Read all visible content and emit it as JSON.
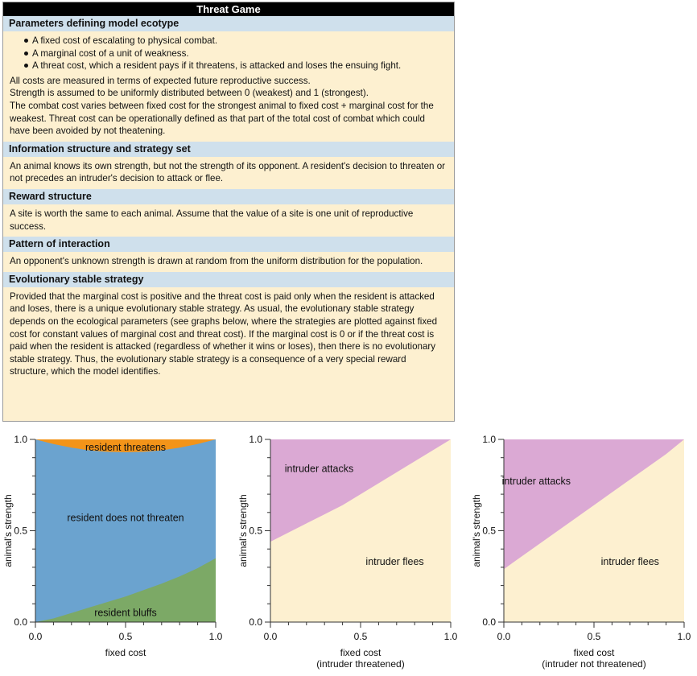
{
  "title": "Threat Game",
  "sections": {
    "ecotype": {
      "heading": "Parameters defining model ecotype",
      "bullets": [
        "A fixed cost of escalating to physical combat.",
        "A marginal cost of a unit of weakness.",
        "A threat cost, which a resident pays if it threatens, is attacked and loses the ensuing fight."
      ],
      "lines": [
        "All costs are measured in terms of expected future reproductive success.",
        "Strength is assumed to be uniformly distributed between 0 (weakest) and 1 (strongest).",
        "The combat cost varies between fixed cost for the strongest animal to fixed cost + marginal cost for the weakest. Threat cost can be operationally defined as that part of the total cost of combat which could have been avoided by not theatening."
      ]
    },
    "information": {
      "heading": "Information structure and strategy set",
      "text": "An animal knows its own strength, but not the strength of its opponent. A resident's decision to threaten or not precedes an intruder's decision to attack or flee."
    },
    "reward": {
      "heading": "Reward structure",
      "text": "A site is worth the same to each animal. Assume that the value of a site is one unit of reproductive success."
    },
    "interaction": {
      "heading": "Pattern of interaction",
      "text": "An opponent's unknown strength is drawn at random from the uniform distribution for the population."
    },
    "ess": {
      "heading": "Evolutionary stable strategy",
      "text": "Provided that the marginal cost is positive and the threat cost is paid only when the resident is attacked and loses, there is a unique evolutionary stable strategy. As usual, the evolutionary stable strategy depends on the ecological parameters (see graphs below, where the strategies are plotted against fixed cost for constant values of marginal cost and threat cost). If the marginal cost is 0 or if the threat cost is paid when the resident is attacked (regardless of whether it wins or loses), then there is no evolutionary stable strategy. Thus, the evolutionary stable strategy is a consequence of a very special reward structure, which the model identifies."
    }
  },
  "chart_data": [
    {
      "type": "area",
      "xlabel": "fixed cost",
      "xlabel2": "",
      "ylabel": "animal's strength",
      "xlim": [
        0,
        1
      ],
      "ylim": [
        0,
        1
      ],
      "xticks": [
        "0.0",
        "0.5",
        "1.0"
      ],
      "yticks": [
        "0.0",
        "0.5",
        "1.0"
      ],
      "x": [
        0,
        0.1,
        0.2,
        0.3,
        0.4,
        0.5,
        0.6,
        0.7,
        0.8,
        0.9,
        1.0
      ],
      "boundaries": {
        "bluff_upper": [
          0,
          0.02,
          0.05,
          0.08,
          0.11,
          0.14,
          0.175,
          0.21,
          0.25,
          0.295,
          0.35
        ],
        "threaten_lower": [
          1.0,
          0.975,
          0.955,
          0.94,
          0.932,
          0.93,
          0.932,
          0.94,
          0.955,
          0.975,
          1.0
        ]
      },
      "regions": [
        {
          "name": "resident threatens",
          "color": "#f39419",
          "label_x": 0.5,
          "label_y": 0.955
        },
        {
          "name": "resident does not threaten",
          "color": "#6ba3cf",
          "label_x": 0.5,
          "label_y": 0.57
        },
        {
          "name": "resident bluffs",
          "color": "#7ca966",
          "label_x": 0.5,
          "label_y": 0.05
        }
      ]
    },
    {
      "type": "area",
      "xlabel": "fixed cost",
      "xlabel2": "(intruder threatened)",
      "ylabel": "animal's strength",
      "xlim": [
        0,
        1
      ],
      "ylim": [
        0,
        1
      ],
      "xticks": [
        "0.0",
        "0.5",
        "1.0"
      ],
      "yticks": [
        "0.0",
        "0.5",
        "1.0"
      ],
      "x": [
        0,
        0.1,
        0.2,
        0.3,
        0.4,
        0.5,
        0.6,
        0.7,
        0.8,
        0.9,
        1.0
      ],
      "boundaries": {
        "attack_lower": [
          0.44,
          0.49,
          0.54,
          0.59,
          0.64,
          0.7,
          0.76,
          0.82,
          0.88,
          0.94,
          1.0
        ]
      },
      "regions": [
        {
          "name": "intruder attacks",
          "color": "#dba9d4",
          "label_x": 0.27,
          "label_y": 0.84
        },
        {
          "name": "intruder flees",
          "color": "#fdf0d0",
          "label_x": 0.69,
          "label_y": 0.33
        }
      ]
    },
    {
      "type": "area",
      "xlabel": "fixed cost",
      "xlabel2": "(intruder not threatened)",
      "ylabel": "animal's strength",
      "xlim": [
        0,
        1
      ],
      "ylim": [
        0,
        1
      ],
      "xticks": [
        "0.0",
        "0.5",
        "1.0"
      ],
      "yticks": [
        "0.0",
        "0.5",
        "1.0"
      ],
      "x": [
        0,
        0.1,
        0.2,
        0.3,
        0.4,
        0.5,
        0.6,
        0.7,
        0.8,
        0.9,
        1.0
      ],
      "boundaries": {
        "attack_lower": [
          0.29,
          0.36,
          0.43,
          0.5,
          0.57,
          0.64,
          0.71,
          0.78,
          0.85,
          0.92,
          1.0
        ]
      },
      "regions": [
        {
          "name": "intruder attacks",
          "color": "#dba9d4",
          "label_x": 0.18,
          "label_y": 0.77
        },
        {
          "name": "intruder flees",
          "color": "#fdf0d0",
          "label_x": 0.7,
          "label_y": 0.33
        }
      ]
    }
  ]
}
